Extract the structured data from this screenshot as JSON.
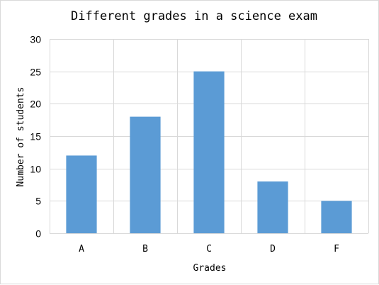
{
  "chart_data": {
    "type": "bar",
    "title": "Different grades in a science exam",
    "xlabel": "Grades",
    "ylabel": "Number of students",
    "categories": [
      "A",
      "B",
      "C",
      "D",
      "F"
    ],
    "values": [
      12,
      18,
      25,
      8,
      5
    ],
    "ylim": [
      0,
      30
    ],
    "yticks": [
      0,
      5,
      10,
      15,
      20,
      25,
      30
    ],
    "grid": "on",
    "legend": "none",
    "colors": {
      "bar": "#5b9bd5",
      "grid": "#d9d9d9"
    }
  }
}
